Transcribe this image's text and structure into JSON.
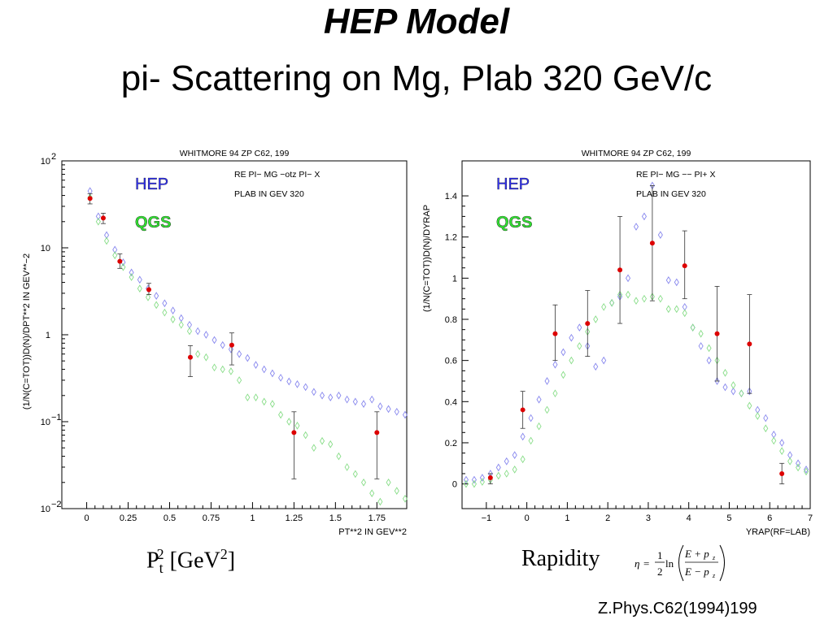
{
  "slide": {
    "title": "HEP Model",
    "subtitle": "pi- Scattering on Mg, Plab 320 GeV/c",
    "citation": "Z.Phys.C62(1994)199"
  },
  "bottom_labels": {
    "pt_base": "P",
    "pt_sub": "t",
    "pt_sup": "2",
    "pt_unit_open": " [GeV",
    "pt_unit_sup": "2",
    "pt_unit_close": "]",
    "rapidity": "Rapidity"
  },
  "formula": {
    "eta": "η",
    "eq": "=",
    "num": "1",
    "den": "2",
    "ln": "ln",
    "top": "E + p",
    "bottom": "E − p",
    "sub": "z"
  },
  "colors": {
    "hep": "#3333ff",
    "qgs": "#33dd33",
    "data": "#dd0000",
    "hep_marker": "#8888ee",
    "qgs_marker": "#88dd88"
  },
  "chart_data": [
    {
      "type": "scatter",
      "header": "WHITMORE 94   ZP C62, 199",
      "reaction": "RE   PI− MG −otz PI− X",
      "plab": "PLAB IN GEV   320",
      "legend": [
        "HEP",
        "QGS"
      ],
      "legend_placement": "top-left",
      "ylabel": "(1/N(C=TOT))D(N)/DPT**2 IN GEV**−2",
      "xlabel": "PT**2 IN GEV**2",
      "xlim": [
        -0.15,
        1.93
      ],
      "ylim": [
        0.01,
        100
      ],
      "yscale": "log",
      "xticks": [
        0,
        0.25,
        0.5,
        0.75,
        1,
        1.25,
        1.5,
        1.75
      ],
      "xtick_labels": [
        "0",
        "0.25",
        "0.5",
        "0.75",
        "1",
        "1.25",
        "1.5",
        "1.75"
      ],
      "ytick_values": [
        0.01,
        0.1,
        1,
        10,
        100
      ],
      "ytick_base": [
        "10",
        "10",
        "1",
        "10",
        "10"
      ],
      "ytick_exp": [
        "−2",
        "−1",
        "",
        "",
        "2"
      ],
      "grid": false,
      "series": [
        {
          "name": "HEP",
          "marker": "diamond",
          "x": [
            0.02,
            0.07,
            0.12,
            0.17,
            0.22,
            0.27,
            0.32,
            0.37,
            0.42,
            0.47,
            0.52,
            0.57,
            0.62,
            0.67,
            0.72,
            0.77,
            0.82,
            0.87,
            0.92,
            0.97,
            1.02,
            1.07,
            1.12,
            1.17,
            1.22,
            1.27,
            1.32,
            1.37,
            1.42,
            1.47,
            1.52,
            1.57,
            1.62,
            1.67,
            1.72,
            1.77,
            1.82,
            1.87,
            1.92
          ],
          "y": [
            45,
            23,
            14,
            9.5,
            6.8,
            5.2,
            4.3,
            3.4,
            2.8,
            2.3,
            1.9,
            1.55,
            1.3,
            1.1,
            1.0,
            0.87,
            0.76,
            0.68,
            0.6,
            0.54,
            0.45,
            0.4,
            0.36,
            0.32,
            0.29,
            0.27,
            0.25,
            0.22,
            0.2,
            0.19,
            0.2,
            0.18,
            0.17,
            0.16,
            0.18,
            0.15,
            0.14,
            0.13,
            0.12
          ]
        },
        {
          "name": "QGS",
          "marker": "diamond",
          "x": [
            0.02,
            0.07,
            0.12,
            0.17,
            0.22,
            0.27,
            0.32,
            0.37,
            0.42,
            0.47,
            0.52,
            0.57,
            0.62,
            0.67,
            0.72,
            0.77,
            0.82,
            0.87,
            0.92,
            0.97,
            1.02,
            1.07,
            1.12,
            1.17,
            1.22,
            1.27,
            1.32,
            1.37,
            1.42,
            1.47,
            1.52,
            1.57,
            1.62,
            1.67,
            1.72,
            1.77,
            1.82,
            1.87,
            1.92
          ],
          "y": [
            38,
            20,
            12,
            8.2,
            6.0,
            4.6,
            3.4,
            2.7,
            2.2,
            1.8,
            1.5,
            1.3,
            1.1,
            0.6,
            0.55,
            0.42,
            0.4,
            0.38,
            0.3,
            0.19,
            0.19,
            0.17,
            0.16,
            0.12,
            0.1,
            0.09,
            0.07,
            0.05,
            0.06,
            0.055,
            0.04,
            0.03,
            0.025,
            0.02,
            0.015,
            0.012,
            0.02,
            0.016,
            0.013
          ]
        },
        {
          "name": "Data",
          "marker": "dot",
          "x": [
            0.02,
            0.1,
            0.2,
            0.375,
            0.625,
            0.875,
            1.25,
            1.75
          ],
          "y": [
            37,
            22,
            7.0,
            3.3,
            0.55,
            0.76,
            0.075,
            0.075
          ],
          "err_low": [
            32,
            19,
            5.8,
            2.9,
            0.33,
            0.45,
            0.022,
            0.022
          ],
          "err_high": [
            42,
            25,
            8.5,
            3.9,
            0.75,
            1.05,
            0.13,
            0.13
          ]
        }
      ]
    },
    {
      "type": "scatter",
      "header": "WHITMORE 94   ZP C62, 199",
      "reaction": "RE   PI− MG −− PI+ X",
      "plab": "PLAB IN GEV   320",
      "legend": [
        "HEP",
        "QGS"
      ],
      "legend_placement": "top-left",
      "ylabel": "(1/N(C=TOT))D(N)/DYRAP",
      "xlabel": "YRAP(RF=LAB)",
      "xlim": [
        -1.6,
        7.0
      ],
      "ylim": [
        -0.12,
        1.57
      ],
      "yscale": "linear",
      "xticks": [
        -1,
        0,
        1,
        2,
        3,
        4,
        5,
        6,
        7
      ],
      "xtick_labels": [
        "−1",
        "0",
        "1",
        "2",
        "3",
        "4",
        "5",
        "6",
        "7"
      ],
      "yticks": [
        0,
        0.2,
        0.4,
        0.6,
        0.8,
        1,
        1.2,
        1.4
      ],
      "ytick_labels": [
        "0",
        "0.2",
        "0.4",
        "0.6",
        "0.8",
        "1",
        "1.2",
        "1.4"
      ],
      "grid": false,
      "series": [
        {
          "name": "HEP",
          "marker": "diamond",
          "x": [
            -1.5,
            -1.3,
            -1.1,
            -0.9,
            -0.7,
            -0.5,
            -0.3,
            -0.1,
            0.1,
            0.3,
            0.5,
            0.7,
            0.9,
            1.1,
            1.3,
            1.5,
            1.7,
            1.9,
            2.1,
            2.3,
            2.5,
            2.7,
            2.9,
            3.1,
            3.3,
            3.5,
            3.7,
            3.9,
            4.1,
            4.3,
            4.5,
            4.7,
            4.9,
            5.1,
            5.3,
            5.5,
            5.7,
            5.9,
            6.1,
            6.3,
            6.5,
            6.7,
            6.9
          ],
          "x_note": "",
          "y": [
            0.02,
            0.02,
            0.03,
            0.05,
            0.08,
            0.11,
            0.14,
            0.23,
            0.32,
            0.41,
            0.5,
            0.58,
            0.64,
            0.71,
            0.76,
            0.67,
            0.57,
            0.6,
            0.88,
            0.91,
            1.0,
            1.25,
            1.3,
            1.45,
            1.21,
            0.99,
            0.98,
            0.86,
            0.76,
            0.67,
            0.6,
            0.5,
            0.47,
            0.45,
            0.44,
            0.45,
            0.36,
            0.32,
            0.24,
            0.2,
            0.14,
            0.1,
            0.07
          ]
        },
        {
          "name": "QGS",
          "marker": "diamond",
          "x": [
            -1.5,
            -1.3,
            -1.1,
            -0.9,
            -0.7,
            -0.5,
            -0.3,
            -0.1,
            0.1,
            0.3,
            0.5,
            0.7,
            0.9,
            1.1,
            1.3,
            1.5,
            1.7,
            1.9,
            2.1,
            2.3,
            2.5,
            2.7,
            2.9,
            3.1,
            3.3,
            3.5,
            3.7,
            3.9,
            4.1,
            4.3,
            4.5,
            4.7,
            4.9,
            5.1,
            5.3,
            5.5,
            5.7,
            5.9,
            6.1,
            6.3,
            6.5,
            6.7,
            6.9
          ],
          "y": [
            0.0,
            0.0,
            0.01,
            0.02,
            0.04,
            0.05,
            0.07,
            0.12,
            0.21,
            0.28,
            0.36,
            0.44,
            0.53,
            0.6,
            0.67,
            0.74,
            0.8,
            0.86,
            0.88,
            0.92,
            0.92,
            0.89,
            0.9,
            0.91,
            0.9,
            0.85,
            0.85,
            0.83,
            0.76,
            0.73,
            0.66,
            0.6,
            0.54,
            0.48,
            0.44,
            0.38,
            0.33,
            0.27,
            0.21,
            0.16,
            0.11,
            0.08,
            0.06
          ]
        },
        {
          "name": "Data",
          "marker": "dot",
          "x": [
            -0.9,
            -0.1,
            0.7,
            1.5,
            2.3,
            3.1,
            3.9,
            4.7,
            5.5,
            6.3
          ],
          "y": [
            0.03,
            0.36,
            0.73,
            0.78,
            1.04,
            1.17,
            1.06,
            0.73,
            0.68,
            0.05
          ],
          "err_low": [
            0.0,
            0.27,
            0.6,
            0.62,
            0.78,
            0.89,
            0.9,
            0.5,
            0.44,
            0.0
          ],
          "err_high": [
            0.05,
            0.45,
            0.87,
            0.94,
            1.3,
            1.45,
            1.23,
            0.96,
            0.92,
            0.1
          ]
        }
      ]
    }
  ]
}
